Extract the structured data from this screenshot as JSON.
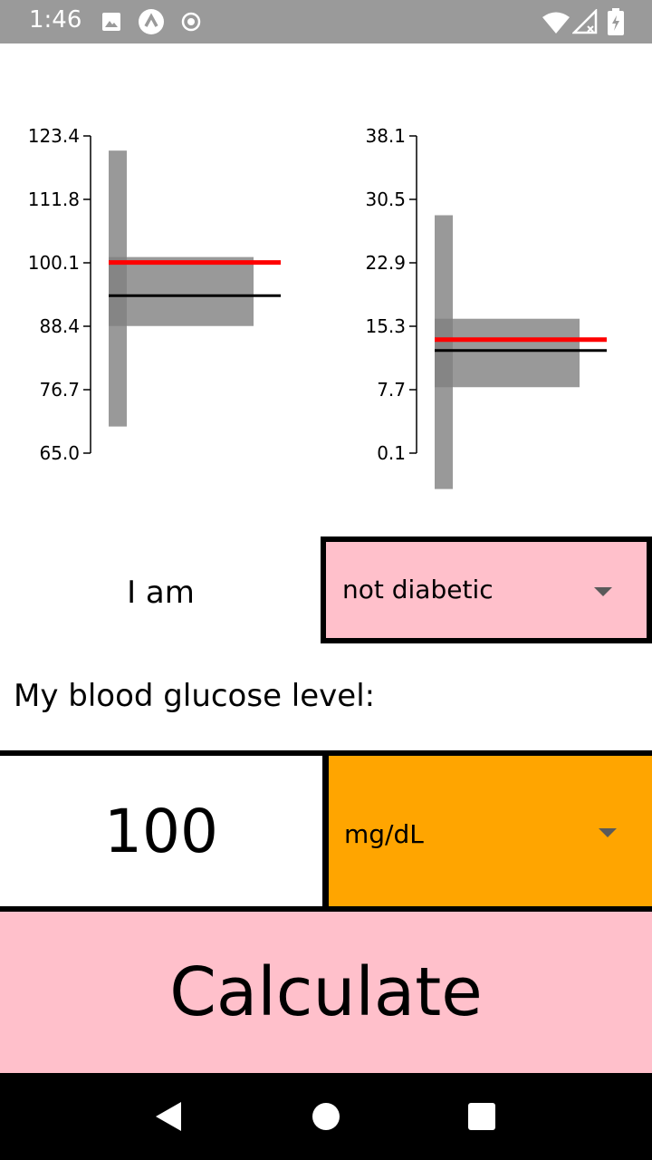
{
  "status_bar": {
    "time": "1:46",
    "icons": [
      "image-icon",
      "app-a-icon",
      "record-icon",
      "wifi-icon",
      "signal-icon",
      "battery-icon"
    ]
  },
  "chart_data": [
    {
      "type": "range-bars",
      "ticks": [
        "123.4",
        "111.8",
        "100.1",
        "88.4",
        "76.7",
        "65.0"
      ],
      "ylim": [
        65.0,
        123.4
      ],
      "vertical_bar": [
        69.9,
        120.7
      ],
      "horizontal_bar": [
        88.4,
        101.1
      ],
      "red_line": 100.1,
      "black_line": 94.0
    },
    {
      "type": "range-bars",
      "ticks": [
        "38.1",
        "30.5",
        "22.9",
        "15.3",
        "7.7",
        "0.1"
      ],
      "ylim": [
        0.1,
        38.1
      ],
      "vertical_bar": [
        -4.2,
        28.6
      ],
      "horizontal_bar": [
        8.0,
        16.2
      ],
      "red_line": 13.7,
      "black_line": 12.4
    }
  ],
  "form": {
    "i_am_label": "I am",
    "diabetic_selected": "not diabetic",
    "glucose_label": "My blood glucose level:",
    "glucose_value": "100",
    "unit_selected": "mg/dL",
    "calculate_label": "Calculate"
  },
  "colors": {
    "status_bar": "#9a9a9a",
    "select_bg": "#ffc0cb",
    "unit_bg": "#ffa500",
    "button_bg": "#ffc0cb",
    "red_line": "#ff0000",
    "bar_fill": "#808080"
  },
  "nav": {
    "icons": [
      "back-icon",
      "home-icon",
      "recents-icon"
    ]
  }
}
